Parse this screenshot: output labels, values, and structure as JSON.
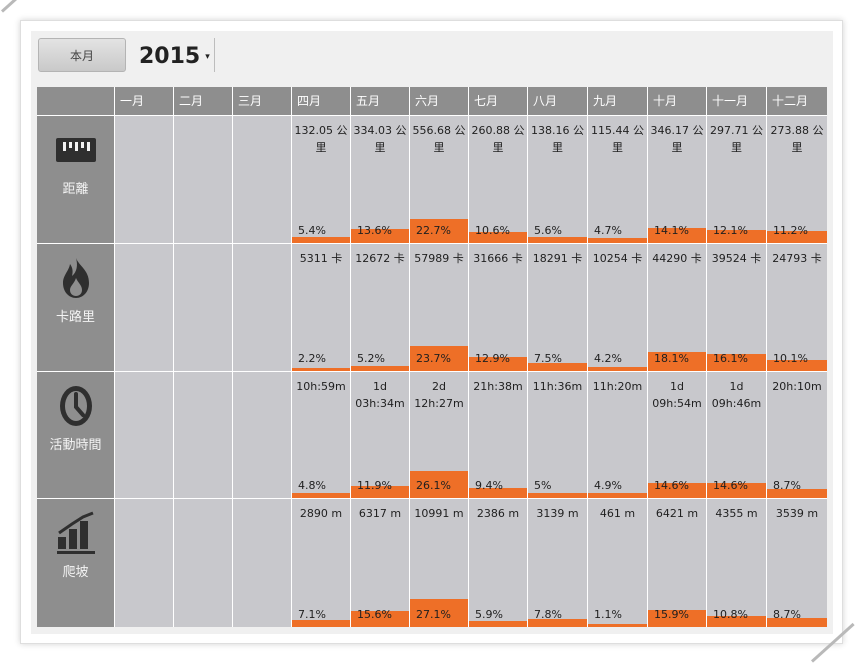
{
  "toolbar": {
    "period_button": "本月",
    "year": "2015",
    "caret": "▾"
  },
  "months": [
    "一月",
    "二月",
    "三月",
    "四月",
    "五月",
    "六月",
    "七月",
    "八月",
    "九月",
    "十月",
    "十一月",
    "十二月"
  ],
  "rows": [
    {
      "key": "distance",
      "label": "距離",
      "icon": "ruler-icon",
      "values": [
        "",
        "",
        "",
        "132.05 公里",
        "334.03 公里",
        "556.68 公里",
        "260.88 公里",
        "138.16 公里",
        "115.44 公里",
        "346.17 公里",
        "297.71 公里",
        "273.88 公里"
      ],
      "percents": [
        "",
        "",
        "",
        "5.4%",
        "13.6%",
        "22.7%",
        "10.6%",
        "5.6%",
        "4.7%",
        "14.1%",
        "12.1%",
        "11.2%"
      ],
      "fractions": [
        0,
        0,
        0,
        0.054,
        0.136,
        0.227,
        0.106,
        0.056,
        0.047,
        0.141,
        0.121,
        0.112
      ]
    },
    {
      "key": "calories",
      "label": "卡路里",
      "icon": "flame-icon",
      "values": [
        "",
        "",
        "",
        "5311 卡",
        "12672 卡",
        "57989 卡",
        "31666 卡",
        "18291 卡",
        "10254 卡",
        "44290 卡",
        "39524 卡",
        "24793 卡"
      ],
      "percents": [
        "",
        "",
        "",
        "2.2%",
        "5.2%",
        "23.7%",
        "12.9%",
        "7.5%",
        "4.2%",
        "18.1%",
        "16.1%",
        "10.1%"
      ],
      "fractions": [
        0,
        0,
        0,
        0.022,
        0.052,
        0.237,
        0.129,
        0.075,
        0.042,
        0.181,
        0.161,
        0.101
      ]
    },
    {
      "key": "time",
      "label": "活動時間",
      "icon": "clock-icon",
      "values": [
        "",
        "",
        "",
        "10h:59m",
        "1d 03h:34m",
        "2d 12h:27m",
        "21h:38m",
        "11h:36m",
        "11h:20m",
        "1d 09h:54m",
        "1d 09h:46m",
        "20h:10m"
      ],
      "percents": [
        "",
        "",
        "",
        "4.8%",
        "11.9%",
        "26.1%",
        "9.4%",
        "5%",
        "4.9%",
        "14.6%",
        "14.6%",
        "8.7%"
      ],
      "fractions": [
        0,
        0,
        0,
        0.048,
        0.119,
        0.261,
        0.094,
        0.05,
        0.049,
        0.146,
        0.146,
        0.087
      ]
    },
    {
      "key": "climb",
      "label": "爬坡",
      "icon": "bar-chart-icon",
      "values": [
        "",
        "",
        "",
        "2890 m",
        "6317 m",
        "10991 m",
        "2386 m",
        "3139 m",
        "461 m",
        "6421 m",
        "4355 m",
        "3539 m"
      ],
      "percents": [
        "",
        "",
        "",
        "7.1%",
        "15.6%",
        "27.1%",
        "5.9%",
        "7.8%",
        "1.1%",
        "15.9%",
        "10.8%",
        "8.7%"
      ],
      "fractions": [
        0,
        0,
        0,
        0.071,
        0.156,
        0.271,
        0.059,
        0.078,
        0.011,
        0.159,
        0.108,
        0.087
      ]
    }
  ],
  "colors": {
    "bar": "#ee6f27",
    "cell": "#c8c8cc",
    "header": "#8e8e8e"
  }
}
